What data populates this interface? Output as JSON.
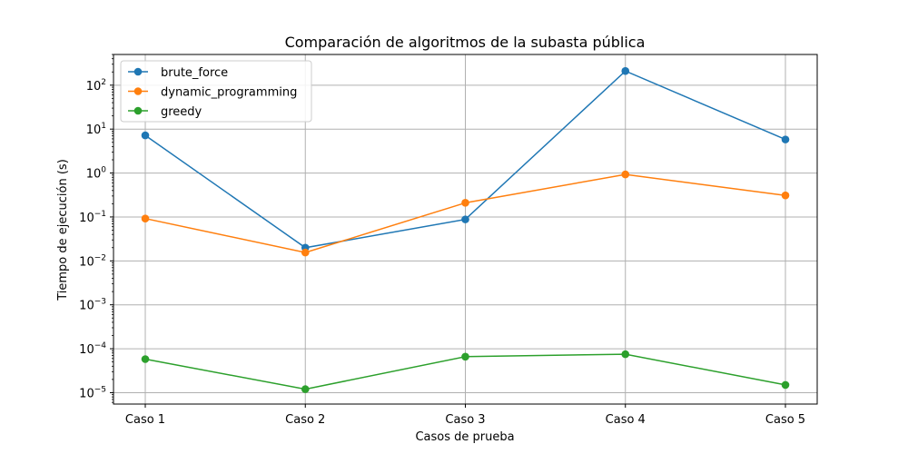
{
  "chart_data": {
    "type": "line",
    "title": "Comparación de algoritmos de la subasta pública",
    "xlabel": "Casos de prueba",
    "ylabel": "Tiempo de ejecución (s)",
    "yscale": "log",
    "ylim": [
      5.5e-06,
      500
    ],
    "grid": true,
    "legend_position": "top-left",
    "categories": [
      "Caso 1",
      "Caso 2",
      "Caso 3",
      "Caso 4",
      "Caso 5"
    ],
    "y_ticks": [
      {
        "base": "10",
        "exp": "−5",
        "value": 1e-05
      },
      {
        "base": "10",
        "exp": "−4",
        "value": 0.0001
      },
      {
        "base": "10",
        "exp": "−3",
        "value": 0.001
      },
      {
        "base": "10",
        "exp": "−2",
        "value": 0.01
      },
      {
        "base": "10",
        "exp": "−1",
        "value": 0.1
      },
      {
        "base": "10",
        "exp": "0",
        "value": 1
      },
      {
        "base": "10",
        "exp": "1",
        "value": 10
      },
      {
        "base": "10",
        "exp": "2",
        "value": 100
      }
    ],
    "series": [
      {
        "name": "brute_force",
        "color": "#1f77b4",
        "values": [
          7.2,
          0.02,
          0.088,
          210,
          5.8
        ]
      },
      {
        "name": "dynamic_programming",
        "color": "#ff7f0e",
        "values": [
          0.092,
          0.0155,
          0.21,
          0.93,
          0.31
        ]
      },
      {
        "name": "greedy",
        "color": "#2ca02c",
        "values": [
          5.8e-05,
          1.2e-05,
          6.6e-05,
          7.5e-05,
          1.5e-05
        ]
      }
    ]
  }
}
